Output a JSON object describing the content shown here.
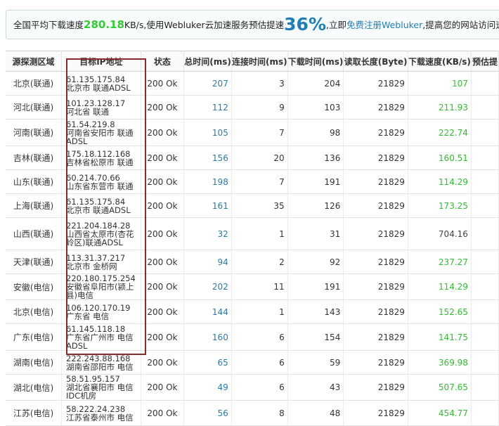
{
  "banner": {
    "prefix": "全国平均下载速度",
    "avg_speed": "280.18",
    "speed_unit": "KB/s,使用Webluker云加速服务预估提速",
    "boost_pct": "36%",
    "mid": ",立即",
    "register_link": "免费注册Webluker",
    "suffix": ",提高您的网站访问速度。"
  },
  "columns": {
    "region": "源探测区域",
    "ip": "目标IP地址",
    "status": "状态",
    "total": "总时间(ms)",
    "connect": "连接时间(ms)",
    "download": "下载时间(ms)",
    "length": "读取长度(Byte)",
    "speed": "下载速度(KB/s)",
    "estimate": "预估提"
  },
  "rows": [
    {
      "region": "北京(联通)",
      "ip": "61.135.175.84",
      "loc": "北京市 联通ADSL",
      "status": "200 Ok",
      "total": "207",
      "connect": "3",
      "download": "204",
      "length": "21829",
      "speed": "107"
    },
    {
      "region": "河北(联通)",
      "ip": "101.23.128.17",
      "loc": "河北省 联通",
      "status": "200 Ok",
      "total": "112",
      "connect": "9",
      "download": "103",
      "length": "21829",
      "speed": "211.93"
    },
    {
      "region": "河南(联通)",
      "ip": "61.54.219.8",
      "loc": "河南省安阳市 联通ADSL",
      "status": "200 Ok",
      "total": "105",
      "connect": "7",
      "download": "98",
      "length": "21829",
      "speed": "222.74"
    },
    {
      "region": "吉林(联通)",
      "ip": "175.18.112.168",
      "loc": "吉林省松原市 联通",
      "status": "200 Ok",
      "total": "156",
      "connect": "20",
      "download": "136",
      "length": "21829",
      "speed": "160.51"
    },
    {
      "region": "山东(联通)",
      "ip": "60.214.70.66",
      "loc": "山东省东营市 联通",
      "status": "200 Ok",
      "total": "198",
      "connect": "7",
      "download": "191",
      "length": "21829",
      "speed": "114.29"
    },
    {
      "region": "上海(联通)",
      "ip": "61.135.175.84",
      "loc": "北京市 联通ADSL",
      "status": "200 Ok",
      "total": "161",
      "connect": "35",
      "download": "126",
      "length": "21829",
      "speed": "173.25"
    },
    {
      "region": "山西(联通)",
      "ip": "221.204.184.28",
      "loc": "山西省太原市(杏花岭区)联通ADSL",
      "status": "200 Ok",
      "total": "32",
      "connect": "1",
      "download": "31",
      "length": "21829",
      "speed": "704.16"
    },
    {
      "region": "天津(联通)",
      "ip": "113.31.37.217",
      "loc": "北京市 金桥网",
      "status": "200 Ok",
      "total": "94",
      "connect": "2",
      "download": "92",
      "length": "21829",
      "speed": "237.27"
    },
    {
      "region": "安徽(电信)",
      "ip": "220.180.175.254",
      "loc": "安徽省阜阳市(颍上县)电信",
      "status": "200 Ok",
      "total": "202",
      "connect": "11",
      "download": "191",
      "length": "21829",
      "speed": "114.29"
    },
    {
      "region": "北京(电信)",
      "ip": "106.120.170.19",
      "loc": "广东省 电信",
      "status": "200 Ok",
      "total": "144",
      "connect": "1",
      "download": "143",
      "length": "21829",
      "speed": "152.65"
    },
    {
      "region": "广东(电信)",
      "ip": "61.145.118.18",
      "loc": "广东省广州市 电信ADSL",
      "status": "200 Ok",
      "total": "160",
      "connect": "6",
      "download": "154",
      "length": "21829",
      "speed": "141.75"
    },
    {
      "region": "湖南(电信)",
      "ip": "222.243.88.168",
      "loc": "湖南省邵阳市 电信",
      "status": "200 Ok",
      "total": "65",
      "connect": "6",
      "download": "59",
      "length": "21829",
      "speed": "369.98"
    },
    {
      "region": "湖北(电信)",
      "ip": "58.51.95.157",
      "loc": "湖北省襄阳市 电信IDC机房",
      "status": "200 Ok",
      "total": "49",
      "connect": "6",
      "download": "43",
      "length": "21829",
      "speed": "507.65"
    },
    {
      "region": "江苏(电信)",
      "ip": "58.222.24.238",
      "loc": "江苏省泰州市 电信",
      "status": "200 Ok",
      "total": "56",
      "connect": "8",
      "download": "48",
      "length": "21829",
      "speed": "454.77"
    }
  ],
  "colors": {
    "speed_fast": "#33bb33",
    "total_time": "#2a7aa8",
    "highlight_box": "#8a2b2b"
  }
}
